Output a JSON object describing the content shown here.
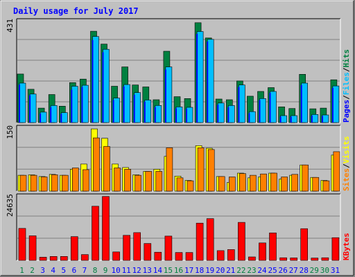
{
  "chart_data": {
    "type": "bar",
    "title": "Daily usage for July 2017",
    "categories": [
      "1",
      "2",
      "3",
      "4",
      "5",
      "6",
      "7",
      "8",
      "9",
      "10",
      "11",
      "12",
      "13",
      "14",
      "15",
      "16",
      "17",
      "18",
      "19",
      "20",
      "21",
      "22",
      "23",
      "24",
      "25",
      "26",
      "27",
      "28",
      "29",
      "30",
      "31"
    ],
    "weekend_days": [
      "1",
      "2",
      "8",
      "9",
      "15",
      "16",
      "22",
      "23",
      "29",
      "30"
    ],
    "panels": [
      {
        "id": "hits-files-pages",
        "max_label": "431",
        "ylim": [
          0,
          431
        ],
        "legend": [
          "Pages",
          "/",
          "Files",
          "/",
          "Hits"
        ],
        "series": [
          {
            "name": "Hits",
            "color": "#008040",
            "values": [
              204,
              140,
              61,
              118,
              69,
              168,
              183,
              384,
              330,
              153,
              234,
              158,
              150,
              96,
              300,
              109,
              101,
              420,
              356,
              99,
              96,
              175,
              111,
              131,
              147,
              66,
              59,
              203,
              58,
              61,
              180
            ]
          },
          {
            "name": "Files",
            "color": "#00bfff",
            "values": [
              166,
              120,
              44,
              72,
              42,
              153,
              157,
              362,
              308,
              103,
              160,
              126,
              95,
              72,
              234,
              66,
              64,
              383,
              350,
              82,
              72,
              158,
              46,
              101,
              131,
              29,
              29,
              166,
              34,
              32,
              154
            ]
          },
          {
            "name": "Pages",
            "color": "#0000ff",
            "values": [
              160,
              115,
              38,
              65,
              37,
              138,
              150,
              347,
              296,
              95,
              152,
              117,
              88,
              65,
              223,
              60,
              58,
              373,
              341,
              75,
              65,
              150,
              40,
              95,
              125,
              25,
              25,
              158,
              29,
              28,
              146
            ]
          }
        ]
      },
      {
        "id": "visits-sites",
        "max_label": "150",
        "ylim": [
          0,
          150
        ],
        "legend": [
          "Sites",
          "/",
          "Visits"
        ],
        "series": [
          {
            "name": "Visits",
            "color": "#ffff00",
            "values": [
              37,
              38,
              34,
              39,
              37,
              51,
              63,
              145,
              123,
              63,
              55,
              38,
              46,
              51,
              81,
              35,
              25,
              106,
              100,
              34,
              20,
              42,
              31,
              33,
              42,
              28,
              37,
              61,
              32,
              25,
              84
            ]
          },
          {
            "name": "Sites",
            "color": "#ff8000",
            "values": [
              37,
              37,
              33,
              38,
              37,
              54,
              50,
              124,
              104,
              54,
              51,
              37,
              46,
              46,
              101,
              31,
              24,
              101,
              97,
              34,
              33,
              41,
              37,
              40,
              42,
              33,
              39,
              61,
              32,
              24,
              92
            ]
          }
        ]
      },
      {
        "id": "kbytes",
        "max_label": "24635",
        "ylim": [
          0,
          24635
        ],
        "legend": [
          "KBytes"
        ],
        "series": [
          {
            "name": "KBytes",
            "color": "#ff0000",
            "values": [
              12100,
              9300,
              1200,
              1500,
              1500,
              9000,
              2200,
              20500,
              24200,
              3200,
              9500,
              10500,
              6400,
              3100,
              9200,
              3000,
              3000,
              14100,
              15800,
              3700,
              4100,
              14400,
              1300,
              6600,
              10400,
              1000,
              950,
              12000,
              900,
              1000,
              8600
            ]
          }
        ]
      }
    ]
  },
  "colors": {
    "title": "#0000ff",
    "weekend_label": "#008040",
    "weekday_label": "#0000ff",
    "plot_background": "#c0c0c0",
    "grid": "#808080"
  }
}
